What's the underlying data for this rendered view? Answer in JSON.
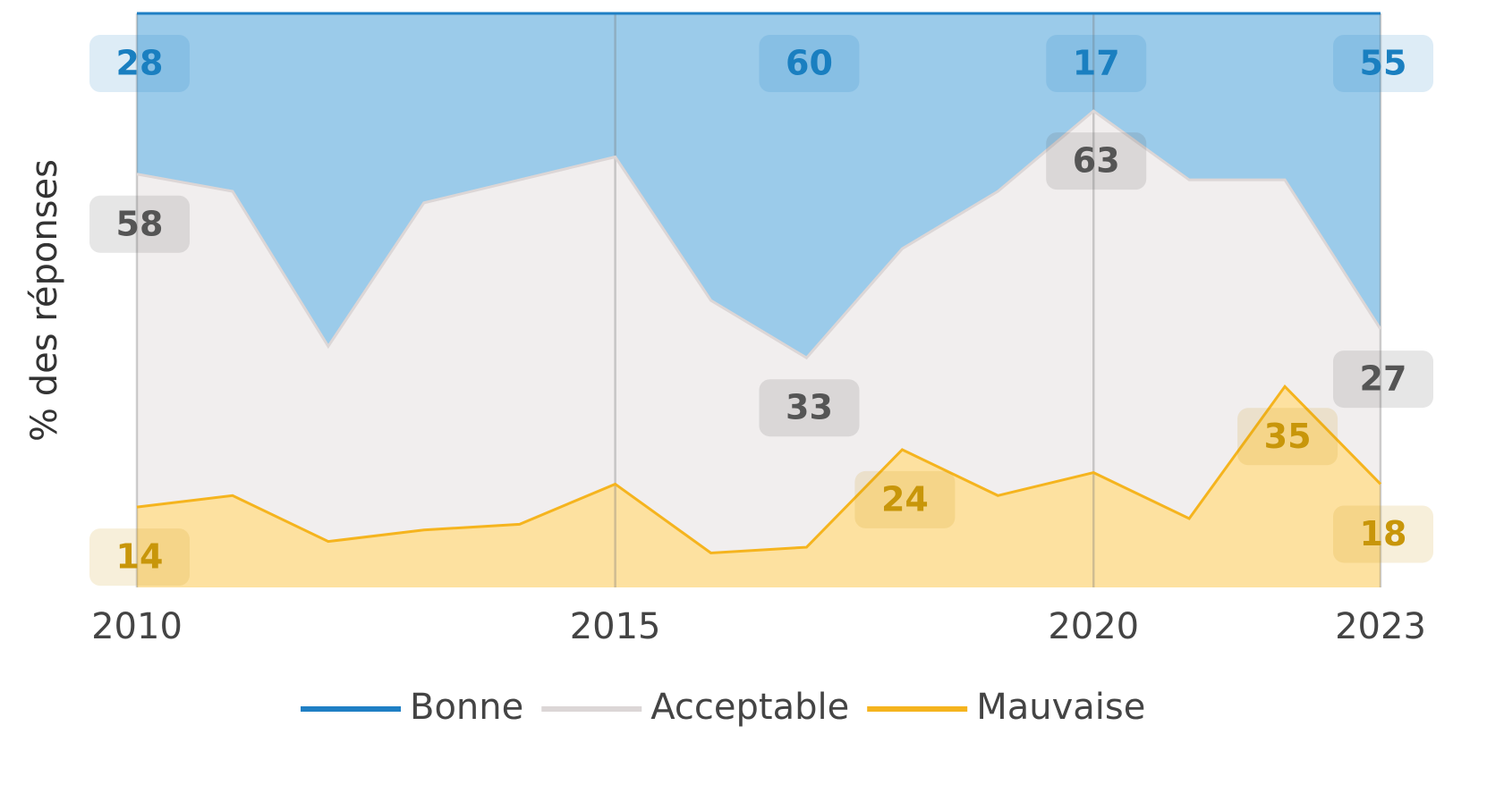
{
  "chart_data": {
    "type": "stacked_area",
    "ylabel": "% des réponses",
    "x": [
      2010,
      2011,
      2012,
      2013,
      2014,
      2015,
      2016,
      2017,
      2018,
      2019,
      2020,
      2021,
      2022,
      2023
    ],
    "xlim": [
      2010,
      2023
    ],
    "xticks": [
      2010,
      2015,
      2020,
      2023
    ],
    "ylim": [
      0,
      100
    ],
    "grid": true,
    "series": [
      {
        "name": "Mauvaise",
        "color": "#f5b41e",
        "fill": "#fde1a0",
        "label_color": "#c8960a",
        "values": [
          14,
          16,
          8,
          10,
          11,
          18,
          6,
          7,
          24,
          16,
          20,
          12,
          35,
          18
        ],
        "label_indices": [
          0,
          8,
          12,
          13
        ]
      },
      {
        "name": "Acceptable",
        "color": "#dcd6d6",
        "fill": "#f1eeee",
        "label_color": "#555555",
        "values": [
          58,
          53,
          34,
          57,
          60,
          57,
          44,
          33,
          35,
          53,
          63,
          59,
          36,
          27
        ],
        "label_indices": [
          0,
          7,
          10,
          13
        ]
      },
      {
        "name": "Bonne",
        "color": "#1f7fc4",
        "fill": "#9bcbea",
        "label_color": "#1a7fc0",
        "values": [
          28,
          31,
          58,
          33,
          29,
          25,
          50,
          60,
          41,
          31,
          17,
          29,
          29,
          55
        ],
        "label_indices": [
          0,
          7,
          10,
          13
        ]
      }
    ],
    "legend_order": [
      2,
      1,
      0
    ]
  }
}
